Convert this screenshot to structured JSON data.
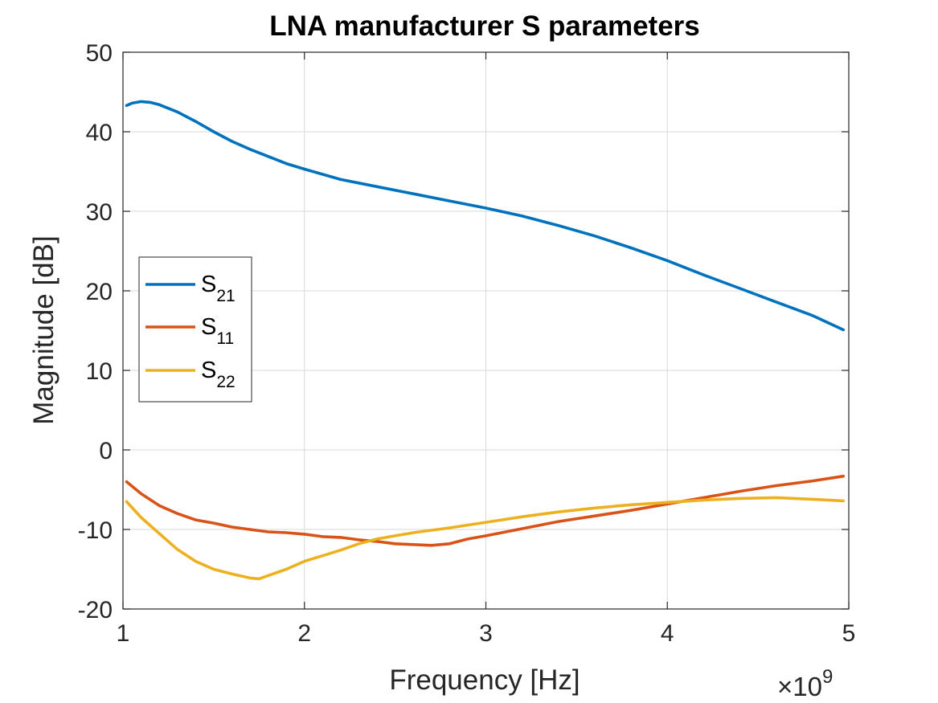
{
  "chart_data": {
    "type": "line",
    "title": "LNA manufacturer S parameters",
    "xlabel": "Frequency [Hz]",
    "ylabel": "Magnitude [dB]",
    "x_exponent_label": "×10",
    "x_exponent_power": "9",
    "xlim": [
      1,
      5
    ],
    "ylim": [
      -20,
      50
    ],
    "x_scale": 1000000000,
    "xticks": [
      1,
      2,
      3,
      4,
      5
    ],
    "xtick_labels": [
      "1",
      "2",
      "3",
      "4",
      "5"
    ],
    "yticks": [
      -20,
      -10,
      0,
      10,
      20,
      30,
      40,
      50
    ],
    "ytick_labels": [
      "-20",
      "-10",
      "0",
      "10",
      "20",
      "30",
      "40",
      "50"
    ],
    "grid": true,
    "legend_position": "center-left",
    "series": [
      {
        "name": "S21",
        "label_main": "S",
        "label_sub": "21",
        "color": "#0072BD",
        "x": [
          1.02,
          1.05,
          1.1,
          1.15,
          1.2,
          1.3,
          1.4,
          1.5,
          1.6,
          1.7,
          1.8,
          1.9,
          2.0,
          2.2,
          2.4,
          2.6,
          2.8,
          3.0,
          3.2,
          3.4,
          3.6,
          3.8,
          4.0,
          4.2,
          4.4,
          4.6,
          4.8,
          4.97
        ],
        "y": [
          43.3,
          43.6,
          43.8,
          43.7,
          43.4,
          42.5,
          41.3,
          40.0,
          38.8,
          37.8,
          36.9,
          36.0,
          35.3,
          34.0,
          33.1,
          32.2,
          31.3,
          30.4,
          29.4,
          28.2,
          26.9,
          25.4,
          23.8,
          22.0,
          20.3,
          18.6,
          16.9,
          15.1
        ]
      },
      {
        "name": "S11",
        "label_main": "S",
        "label_sub": "11",
        "color": "#D95319",
        "x": [
          1.02,
          1.1,
          1.2,
          1.3,
          1.4,
          1.5,
          1.6,
          1.7,
          1.8,
          1.9,
          2.0,
          2.1,
          2.2,
          2.3,
          2.4,
          2.5,
          2.6,
          2.7,
          2.8,
          2.9,
          3.0,
          3.2,
          3.4,
          3.6,
          3.8,
          4.0,
          4.2,
          4.4,
          4.6,
          4.8,
          4.97
        ],
        "y": [
          -4.0,
          -5.5,
          -7.0,
          -8.0,
          -8.8,
          -9.2,
          -9.7,
          -10.0,
          -10.3,
          -10.4,
          -10.6,
          -10.9,
          -11.0,
          -11.3,
          -11.5,
          -11.8,
          -11.9,
          -12.0,
          -11.8,
          -11.2,
          -10.8,
          -9.9,
          -9.0,
          -8.3,
          -7.6,
          -6.8,
          -6.0,
          -5.2,
          -4.5,
          -3.9,
          -3.3
        ]
      },
      {
        "name": "S22",
        "label_main": "S",
        "label_sub": "22",
        "color": "#EDB120",
        "x": [
          1.02,
          1.1,
          1.2,
          1.3,
          1.4,
          1.5,
          1.6,
          1.7,
          1.75,
          1.8,
          1.9,
          2.0,
          2.1,
          2.2,
          2.3,
          2.4,
          2.5,
          2.6,
          2.8,
          3.0,
          3.2,
          3.4,
          3.6,
          3.8,
          4.0,
          4.2,
          4.4,
          4.6,
          4.8,
          4.97
        ],
        "y": [
          -6.5,
          -8.5,
          -10.5,
          -12.5,
          -14.0,
          -15.0,
          -15.6,
          -16.1,
          -16.2,
          -15.8,
          -15.0,
          -14.0,
          -13.3,
          -12.6,
          -11.8,
          -11.2,
          -10.8,
          -10.4,
          -9.8,
          -9.1,
          -8.4,
          -7.8,
          -7.3,
          -6.9,
          -6.6,
          -6.3,
          -6.1,
          -6.0,
          -6.2,
          -6.4
        ]
      }
    ]
  }
}
